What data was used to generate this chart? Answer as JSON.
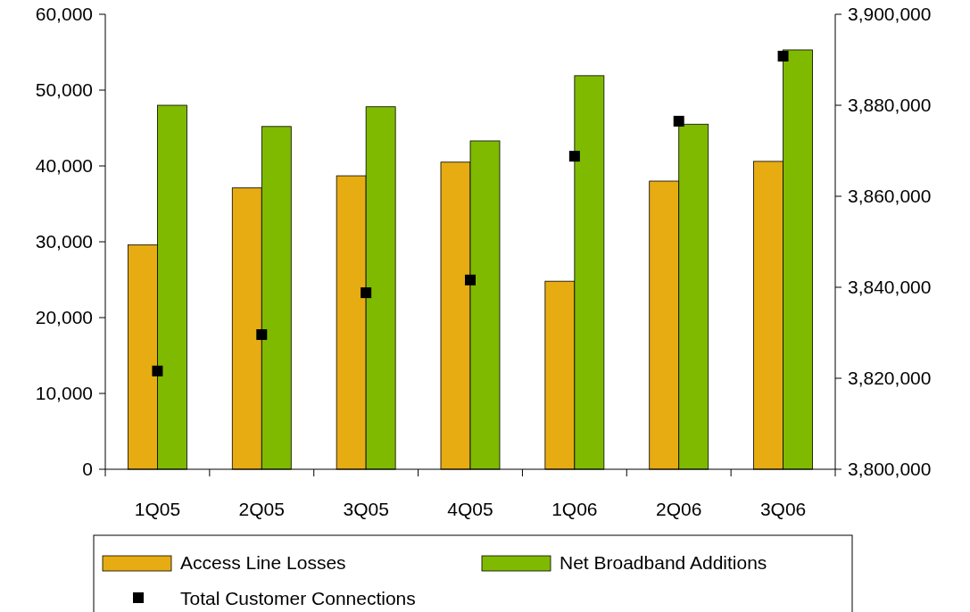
{
  "chart_data": {
    "type": "bar",
    "categories": [
      "1Q05",
      "2Q05",
      "3Q05",
      "4Q05",
      "1Q06",
      "2Q06",
      "3Q06"
    ],
    "series": [
      {
        "name": "Access Line Losses",
        "color": "#e6ac12",
        "values": [
          29600,
          37100,
          38700,
          40500,
          24800,
          38000,
          40600
        ]
      },
      {
        "name": "Net Broadband Additions",
        "color": "#7fba00",
        "values": [
          48000,
          45200,
          47800,
          43300,
          51900,
          45500,
          55300
        ]
      },
      {
        "name": "Total Customer Connections",
        "type": "scatter",
        "axis": "y2",
        "color": "#000000",
        "marker": "square",
        "values": [
          3821600,
          3829600,
          3838800,
          3841600,
          3868800,
          3876500,
          3890800
        ]
      }
    ],
    "ylim": [
      0,
      60000
    ],
    "yticks": [
      {
        "value": 0,
        "label": "0"
      },
      {
        "value": 10000,
        "label": "10,000"
      },
      {
        "value": 20000,
        "label": "20,000"
      },
      {
        "value": 30000,
        "label": "30,000"
      },
      {
        "value": 40000,
        "label": "40,000"
      },
      {
        "value": 50000,
        "label": "50,000"
      },
      {
        "value": 60000,
        "label": "60,000"
      }
    ],
    "y2lim": [
      3800000,
      3900000
    ],
    "y2ticks": [
      {
        "value": 3800000,
        "label": "3,800,000"
      },
      {
        "value": 3820000,
        "label": "3,820,000"
      },
      {
        "value": 3840000,
        "label": "3,840,000"
      },
      {
        "value": 3860000,
        "label": "3,860,000"
      },
      {
        "value": 3880000,
        "label": "3,880,000"
      },
      {
        "value": 3900000,
        "label": "3,900,000"
      }
    ],
    "legend": "bottom",
    "grid": false
  }
}
